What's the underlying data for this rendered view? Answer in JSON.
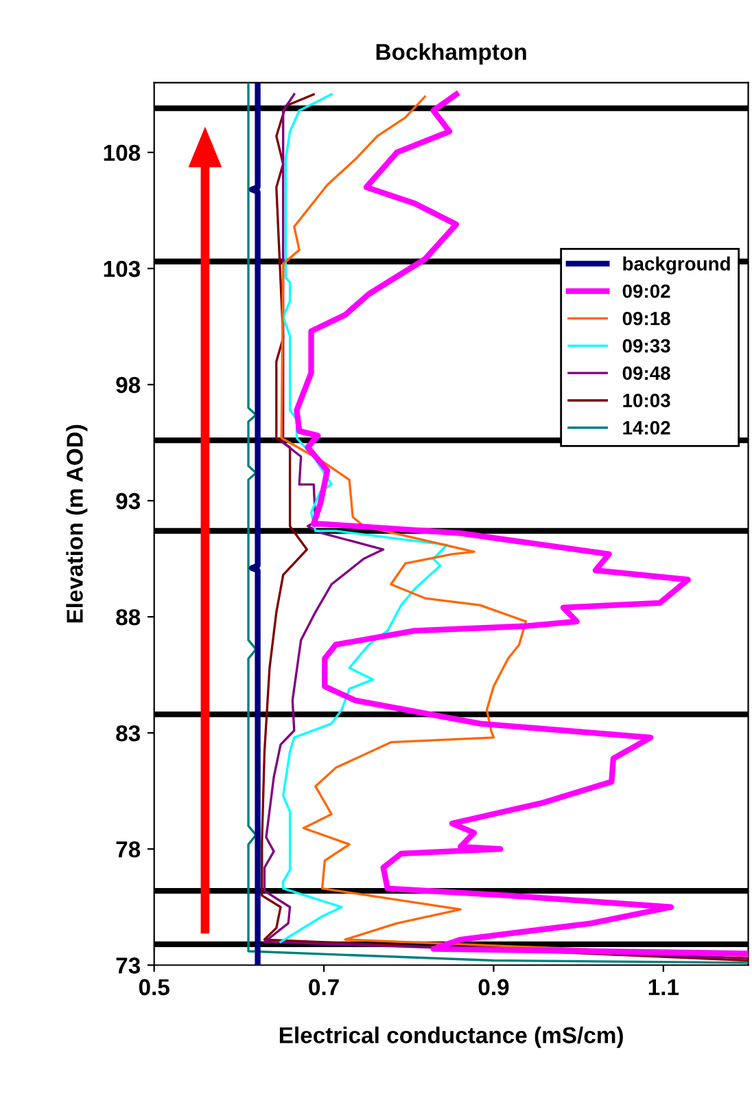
{
  "chart_data": {
    "type": "line",
    "title": "Bockhampton",
    "xlabel": "Electrical conductance (mS/cm)",
    "ylabel": "Elevation (m AOD)",
    "xlim": [
      0.5,
      1.2
    ],
    "xticks": [
      0.5,
      0.7,
      0.9,
      1.1
    ],
    "ylim": [
      73,
      111
    ],
    "yticks": [
      73,
      78,
      83,
      88,
      93,
      98,
      103,
      108
    ],
    "grid": false,
    "legend": "right",
    "marker": "none",
    "line_style": "solid",
    "ref_lines": [
      {
        "axis": "y",
        "value": 109.9,
        "color": "#000000"
      },
      {
        "axis": "y",
        "value": 103.3,
        "color": "#000000"
      },
      {
        "axis": "y",
        "value": 95.6,
        "color": "#000000"
      },
      {
        "axis": "y",
        "value": 91.7,
        "color": "#000000"
      },
      {
        "axis": "y",
        "value": 83.8,
        "color": "#000000"
      },
      {
        "axis": "y",
        "value": 76.2,
        "color": "#000000"
      },
      {
        "axis": "y",
        "value": 73.9,
        "color": "#000000"
      }
    ],
    "series": [
      {
        "name": "background",
        "color": "#000080",
        "x": [
          0.622,
          0.622,
          0.615,
          0.622,
          0.622,
          0.615,
          0.622,
          0.622,
          0.622
        ],
        "values": [
          111,
          106.5,
          106.4,
          106.3,
          90.2,
          90.1,
          90.0,
          73.5,
          73
        ]
      },
      {
        "name": "09:02",
        "color": "#ff00ff",
        "x": [
          0.856,
          0.829,
          0.848,
          0.786,
          0.75,
          0.807,
          0.856,
          0.819,
          0.753,
          0.725,
          0.685,
          0.685,
          0.668,
          0.671,
          0.693,
          0.681,
          0.704,
          0.696,
          0.688,
          0.698,
          0.861,
          1.036,
          1.02,
          1.129,
          1.096,
          0.982,
          0.998,
          0.938,
          0.807,
          0.714,
          0.701,
          0.701,
          0.737,
          0.796,
          0.884,
          1.085,
          1.041,
          1.039,
          1.003,
          0.959,
          0.851,
          0.877,
          0.861,
          0.908,
          0.791,
          0.77,
          0.775,
          0.917,
          1.109,
          1.015,
          0.861,
          0.829,
          1.2
        ],
        "values": [
          110.5,
          109.8,
          108.9,
          108,
          106.5,
          105.8,
          104.9,
          103.4,
          101.9,
          101,
          100.3,
          98.5,
          96.9,
          96,
          95.8,
          95.3,
          94.3,
          92.9,
          92,
          92,
          91.6,
          90.7,
          90,
          89.6,
          88.6,
          88.4,
          87.8,
          87.6,
          87.4,
          86.8,
          86.2,
          85,
          84.4,
          84,
          83.4,
          82.8,
          81.9,
          80.9,
          80.5,
          80,
          79.1,
          78.7,
          78.1,
          78,
          77.8,
          77.2,
          76.3,
          76,
          75.5,
          74.8,
          74.1,
          73.7,
          73.5
        ]
      },
      {
        "name": "09:18",
        "color": "#ff6600",
        "x": [
          0.819,
          0.796,
          0.763,
          0.737,
          0.704,
          0.665,
          0.671,
          0.652,
          0.65,
          0.698,
          0.73,
          0.734,
          0.747,
          0.877,
          0.851,
          0.796,
          0.779,
          0.819,
          0.884,
          0.938,
          0.93,
          0.917,
          0.9,
          0.892,
          0.897,
          0.9,
          0.779,
          0.714,
          0.69,
          0.709,
          0.676,
          0.73,
          0.701,
          0.698,
          0.753,
          0.861,
          0.786,
          0.725,
          1.2
        ],
        "values": [
          110.4,
          109.5,
          108.7,
          107.7,
          106.6,
          104.8,
          103.8,
          103.2,
          95.7,
          94.7,
          93.9,
          92.3,
          91.9,
          90.8,
          90.7,
          90.3,
          89.4,
          88.8,
          88.5,
          87.8,
          86.8,
          86.2,
          85,
          84,
          83.1,
          82.8,
          82.6,
          81.5,
          80.7,
          79.5,
          78.9,
          78.2,
          77.5,
          76.3,
          76,
          75.4,
          74.8,
          74.1,
          73.4
        ]
      },
      {
        "name": "09:33",
        "color": "#00ffff",
        "x": [
          0.709,
          0.671,
          0.66,
          0.655,
          0.655,
          0.66,
          0.66,
          0.652,
          0.66,
          0.66,
          0.668,
          0.668,
          0.688,
          0.709,
          0.696,
          0.685,
          0.69,
          0.714,
          0.845,
          0.829,
          0.837,
          0.807,
          0.791,
          0.775,
          0.753,
          0.73,
          0.758,
          0.73,
          0.721,
          0.709,
          0.665,
          0.66,
          0.652,
          0.66,
          0.66,
          0.652,
          0.652,
          0.721,
          0.698,
          0.649
        ],
        "values": [
          110.5,
          109.8,
          108.9,
          107.7,
          102.6,
          102.4,
          101.6,
          100.9,
          100.1,
          96.9,
          96.5,
          95.7,
          94.9,
          93.7,
          93.4,
          92.5,
          91.7,
          91.7,
          91.1,
          90.5,
          90.2,
          89.2,
          88.5,
          87.4,
          86.8,
          85.8,
          85.3,
          84.9,
          84,
          83.4,
          82.8,
          82.2,
          80.3,
          79.6,
          77.1,
          76.6,
          76.3,
          75.5,
          75.1,
          74
        ]
      },
      {
        "name": "09:48",
        "color": "#800080",
        "x": [
          0.665,
          0.652,
          0.652,
          0.673,
          0.671,
          0.688,
          0.69,
          0.681,
          0.698,
          0.77,
          0.747,
          0.709,
          0.69,
          0.673,
          0.663,
          0.665,
          0.649,
          0.641,
          0.632,
          0.641,
          0.63,
          0.63,
          0.66,
          0.658,
          0.63,
          1.2
        ],
        "values": [
          110.5,
          109.8,
          95.5,
          94.9,
          93.7,
          93.7,
          92.1,
          91.9,
          91.6,
          90.9,
          90.5,
          89.4,
          88.2,
          87,
          84.4,
          83.1,
          82.5,
          81.1,
          78.5,
          77.9,
          77.2,
          76.2,
          75.5,
          74.8,
          74,
          73.3
        ]
      },
      {
        "name": "10:03",
        "color": "#800000",
        "x": [
          0.688,
          0.655,
          0.644,
          0.652,
          0.644,
          0.652,
          0.644,
          0.644,
          0.66,
          0.66,
          0.68,
          0.652,
          0.644,
          0.636,
          0.63,
          0.627,
          0.627,
          0.649,
          0.644,
          0.63,
          1.2
        ],
        "values": [
          110.5,
          110,
          108.7,
          107.5,
          106.5,
          100,
          99,
          95.7,
          95.3,
          91.9,
          90.9,
          89.8,
          88.2,
          85.8,
          82.2,
          78.3,
          76,
          75.5,
          74.6,
          74.1,
          73.2
        ]
      },
      {
        "name": "14:02",
        "color": "#008080",
        "x": [
          0.611,
          0.611,
          0.62,
          0.611,
          0.611,
          0.62,
          0.611,
          0.611,
          0.62,
          0.611,
          0.611,
          0.62,
          0.611,
          0.611,
          0.9,
          1.2
        ],
        "values": [
          111,
          97,
          96.7,
          96.4,
          94.5,
          94.2,
          93.9,
          87,
          86.6,
          86.2,
          79,
          78.6,
          78.2,
          73.6,
          73.2,
          73.1
        ]
      }
    ]
  }
}
